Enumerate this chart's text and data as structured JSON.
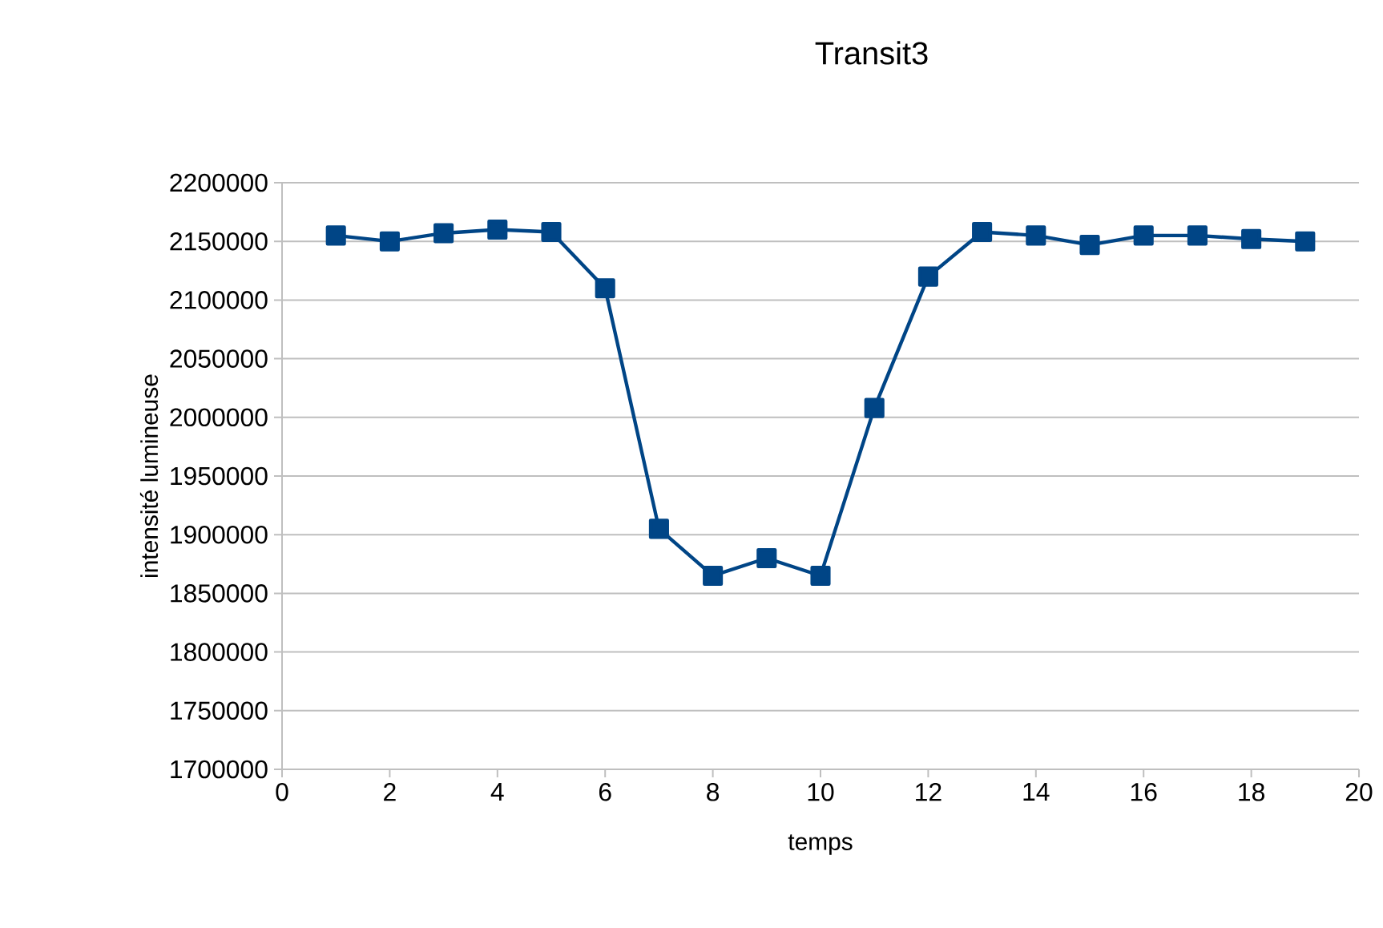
{
  "chart_data": {
    "type": "line",
    "title": "Transit3",
    "xlabel": "temps",
    "ylabel": "intensité lumineuse",
    "x": [
      1,
      2,
      3,
      4,
      5,
      6,
      7,
      8,
      9,
      10,
      11,
      12,
      13,
      14,
      15,
      16,
      17,
      18,
      19
    ],
    "series": [
      {
        "color": "#004586",
        "values": [
          2155000,
          2150000,
          2157000,
          2160000,
          2158000,
          2110000,
          1905000,
          1865000,
          1880000,
          1865000,
          2008000,
          2120000,
          2158000,
          2155000,
          2147000,
          2155000,
          2155000,
          2152000,
          2150000
        ]
      }
    ],
    "xlim": [
      0,
      20
    ],
    "xticks": [
      0,
      2,
      4,
      6,
      8,
      10,
      12,
      14,
      16,
      18,
      20
    ],
    "ylim": [
      1700000,
      2200000
    ],
    "yticks": [
      1700000,
      1750000,
      1800000,
      1850000,
      1900000,
      1950000,
      2000000,
      2050000,
      2100000,
      2150000,
      2200000
    ],
    "grid": "y",
    "marker": "square",
    "line_style": "solid"
  }
}
